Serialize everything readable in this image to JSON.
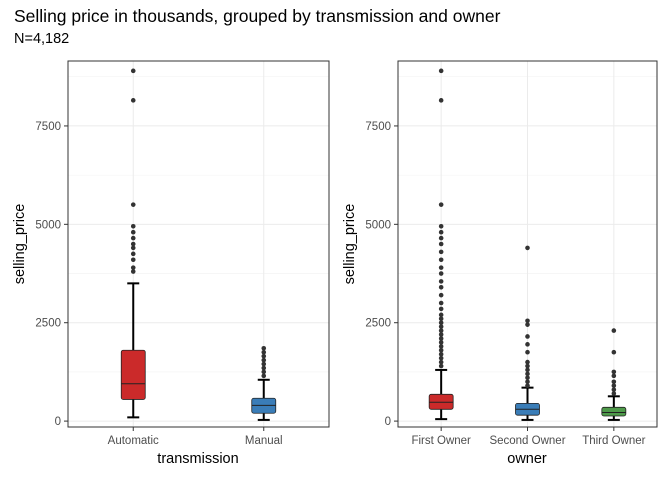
{
  "header": {
    "title": "Selling price in thousands, grouped by transmission and owner",
    "subtitle": "N=4,182"
  },
  "chart_data": [
    {
      "type": "box",
      "xlabel": "transmission",
      "ylabel": "selling_price",
      "ylim": [
        -150,
        9150
      ],
      "yticks": [
        0,
        2500,
        5000,
        7500
      ],
      "grid": true,
      "categories": [
        "Automatic",
        "Manual"
      ],
      "colors": [
        "#CB2A2A",
        "#3A7DB8"
      ],
      "boxes": [
        {
          "category": "Automatic",
          "whisker_low": 95,
          "q1": 550,
          "median": 950,
          "q3": 1800,
          "whisker_high": 3500,
          "outliers": [
            3800,
            3900,
            4100,
            4250,
            4400,
            4500,
            4650,
            4800,
            4950,
            5500,
            8150,
            8900
          ]
        },
        {
          "category": "Manual",
          "whisker_low": 30,
          "q1": 200,
          "median": 400,
          "q3": 580,
          "whisker_high": 1050,
          "outliers": [
            1150,
            1250,
            1350,
            1450,
            1550,
            1650,
            1750,
            1850
          ]
        }
      ]
    },
    {
      "type": "box",
      "xlabel": "owner",
      "ylabel": "selling_price",
      "ylim": [
        -150,
        9150
      ],
      "yticks": [
        0,
        2500,
        5000,
        7500
      ],
      "grid": true,
      "categories": [
        "First Owner",
        "Second Owner",
        "Third Owner"
      ],
      "colors": [
        "#CB2A2A",
        "#3A7DB8",
        "#4E9A4A"
      ],
      "boxes": [
        {
          "category": "First Owner",
          "whisker_low": 50,
          "q1": 300,
          "median": 480,
          "q3": 680,
          "whisker_high": 1300,
          "outliers": [
            1400,
            1500,
            1600,
            1700,
            1800,
            1900,
            2000,
            2100,
            2200,
            2300,
            2400,
            2500,
            2600,
            2700,
            2850,
            3000,
            3200,
            3400,
            3550,
            3750,
            3900,
            4100,
            4300,
            4500,
            4650,
            4800,
            4950,
            5500,
            8150,
            8900
          ]
        },
        {
          "category": "Second Owner",
          "whisker_low": 30,
          "q1": 150,
          "median": 300,
          "q3": 450,
          "whisker_high": 850,
          "outliers": [
            900,
            1000,
            1100,
            1200,
            1300,
            1400,
            1500,
            1750,
            1950,
            2150,
            2450,
            2550,
            4400
          ]
        },
        {
          "category": "Third Owner",
          "whisker_low": 30,
          "q1": 130,
          "median": 220,
          "q3": 350,
          "whisker_high": 630,
          "outliers": [
            700,
            800,
            900,
            1000,
            1150,
            1250,
            1750,
            2300
          ]
        }
      ]
    }
  ]
}
